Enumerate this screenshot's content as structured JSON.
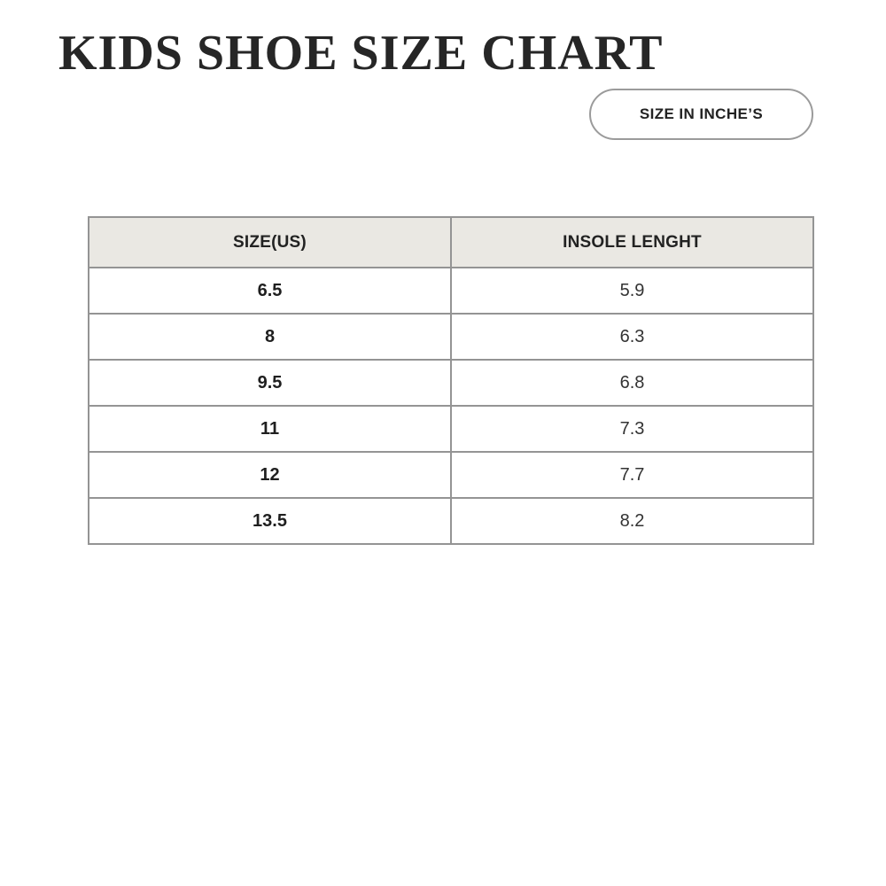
{
  "page": {
    "title": "KIDS SHOE SIZE CHART",
    "unit_button_label": "SIZE IN INCHE’S"
  },
  "table": {
    "headers": [
      "SIZE(US)",
      "INSOLE LENGHT"
    ],
    "rows": [
      [
        "6.5",
        "5.9"
      ],
      [
        "8",
        "6.3"
      ],
      [
        "9.5",
        "6.8"
      ],
      [
        "11",
        "7.3"
      ],
      [
        "12",
        "7.7"
      ],
      [
        "13.5",
        "8.2"
      ]
    ]
  },
  "colors": {
    "header_bg": "#eae8e3",
    "table_border": "#949494",
    "pill_border": "#9b9b9b",
    "text": "#222222",
    "background": "#ffffff"
  },
  "chart_data": {
    "type": "table",
    "title": "KIDS SHOE SIZE CHART",
    "unit_label": "SIZE IN INCHE’S",
    "columns": [
      "SIZE(US)",
      "INSOLE LENGHT"
    ],
    "rows": [
      [
        6.5,
        5.9
      ],
      [
        8,
        6.3
      ],
      [
        9.5,
        6.8
      ],
      [
        11,
        7.3
      ],
      [
        12,
        7.7
      ],
      [
        13.5,
        8.2
      ]
    ]
  }
}
